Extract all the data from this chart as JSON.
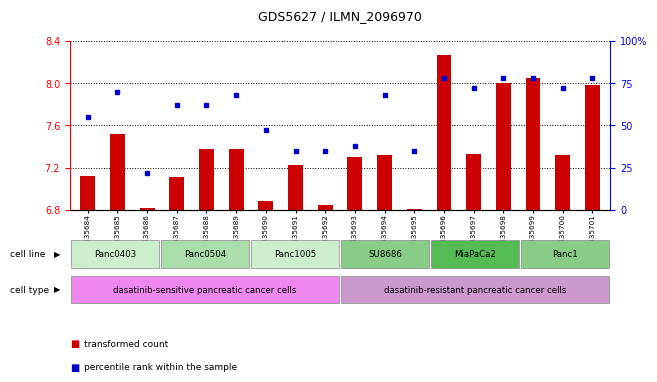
{
  "title": "GDS5627 / ILMN_2096970",
  "samples": [
    "GSM1435684",
    "GSM1435685",
    "GSM1435686",
    "GSM1435687",
    "GSM1435688",
    "GSM1435689",
    "GSM1435690",
    "GSM1435691",
    "GSM1435692",
    "GSM1435693",
    "GSM1435694",
    "GSM1435695",
    "GSM1435696",
    "GSM1435697",
    "GSM1435698",
    "GSM1435699",
    "GSM1435700",
    "GSM1435701"
  ],
  "transformed_count": [
    7.12,
    7.52,
    6.82,
    7.11,
    7.38,
    7.38,
    6.88,
    7.22,
    6.85,
    7.3,
    7.32,
    6.81,
    8.27,
    7.33,
    8.0,
    8.05,
    7.32,
    7.98
  ],
  "percentile_rank": [
    55,
    70,
    22,
    62,
    62,
    68,
    47,
    35,
    35,
    38,
    68,
    35,
    78,
    72,
    78,
    78,
    72,
    78
  ],
  "ylim_left": [
    6.8,
    8.4
  ],
  "ylim_right": [
    0,
    100
  ],
  "yticks_left": [
    6.8,
    7.2,
    7.6,
    8.0,
    8.4
  ],
  "yticks_right": [
    0,
    25,
    50,
    75,
    100
  ],
  "ytick_labels_right": [
    "0",
    "25",
    "50",
    "75",
    "100%"
  ],
  "bar_color": "#cc0000",
  "dot_color": "#0000cc",
  "cell_lines": [
    {
      "label": "Panc0403",
      "start": 0,
      "end": 3,
      "color": "#cceecc"
    },
    {
      "label": "Panc0504",
      "start": 3,
      "end": 6,
      "color": "#aaddaa"
    },
    {
      "label": "Panc1005",
      "start": 6,
      "end": 9,
      "color": "#cceecc"
    },
    {
      "label": "SU8686",
      "start": 9,
      "end": 12,
      "color": "#88cc88"
    },
    {
      "label": "MiaPaCa2",
      "start": 12,
      "end": 15,
      "color": "#55bb55"
    },
    {
      "label": "Panc1",
      "start": 15,
      "end": 18,
      "color": "#88cc88"
    }
  ],
  "cell_types": [
    {
      "label": "dasatinib-sensitive pancreatic cancer cells",
      "start": 0,
      "end": 9,
      "color": "#ee88ee"
    },
    {
      "label": "dasatinib-resistant pancreatic cancer cells",
      "start": 9,
      "end": 18,
      "color": "#cc99cc"
    }
  ],
  "legend_bar_label": "transformed count",
  "legend_dot_label": "percentile rank within the sample",
  "background_color": "#ffffff"
}
